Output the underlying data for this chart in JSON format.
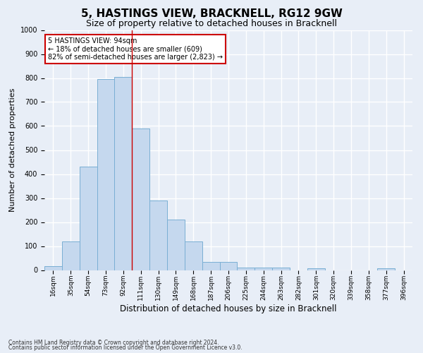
{
  "title": "5, HASTINGS VIEW, BRACKNELL, RG12 9GW",
  "subtitle": "Size of property relative to detached houses in Bracknell",
  "xlabel": "Distribution of detached houses by size in Bracknell",
  "ylabel": "Number of detached properties",
  "categories": [
    "16sqm",
    "35sqm",
    "54sqm",
    "73sqm",
    "92sqm",
    "111sqm",
    "130sqm",
    "149sqm",
    "168sqm",
    "187sqm",
    "206sqm",
    "225sqm",
    "244sqm",
    "263sqm",
    "282sqm",
    "301sqm",
    "320sqm",
    "339sqm",
    "358sqm",
    "377sqm",
    "396sqm"
  ],
  "values": [
    15,
    120,
    430,
    795,
    805,
    590,
    290,
    210,
    120,
    35,
    35,
    10,
    10,
    10,
    0,
    8,
    0,
    0,
    0,
    8,
    0
  ],
  "bar_color": "#c5d8ee",
  "bar_edgecolor": "#7aafd4",
  "red_line_x": 4.5,
  "annotation_text": "5 HASTINGS VIEW: 94sqm\n← 18% of detached houses are smaller (609)\n82% of semi-detached houses are larger (2,823) →",
  "annotation_box_color": "#ffffff",
  "annotation_box_edgecolor": "#cc0000",
  "ylim": [
    0,
    1000
  ],
  "yticks": [
    0,
    100,
    200,
    300,
    400,
    500,
    600,
    700,
    800,
    900,
    1000
  ],
  "footer1": "Contains HM Land Registry data © Crown copyright and database right 2024.",
  "footer2": "Contains public sector information licensed under the Open Government Licence v3.0.",
  "bg_color": "#e8eef7",
  "plot_bg_color": "#e8eef7",
  "grid_color": "#ffffff",
  "title_fontsize": 11,
  "subtitle_fontsize": 9,
  "tick_fontsize": 6.5,
  "ylabel_fontsize": 8,
  "xlabel_fontsize": 8.5,
  "footer_fontsize": 5.5
}
